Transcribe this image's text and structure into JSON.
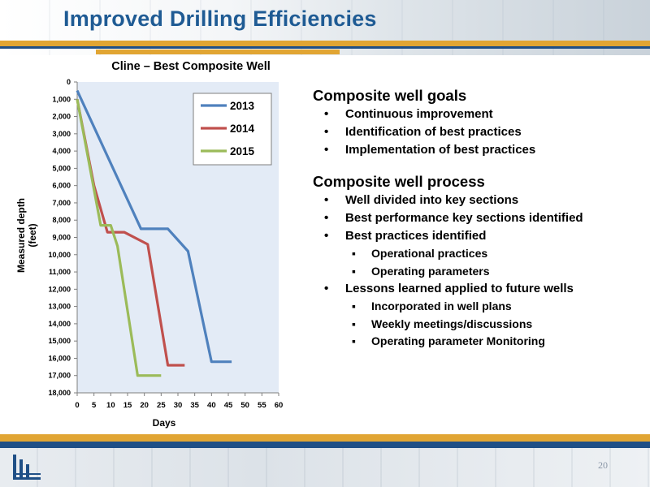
{
  "slide": {
    "title": "Improved Drilling Efficiencies",
    "page_number": "20"
  },
  "chart_data": {
    "type": "line",
    "title": "Cline – Best Composite Well",
    "xlabel": "Days",
    "ylabel": "Measured depth (feet)",
    "xlim": [
      0,
      60
    ],
    "ylim": [
      0,
      18000
    ],
    "y_reversed": true,
    "x_ticks": [
      "0",
      "5",
      "10",
      "15",
      "20",
      "25",
      "30",
      "35",
      "40",
      "45",
      "50",
      "55",
      "60"
    ],
    "y_ticks": [
      "0",
      "1,000",
      "2,000",
      "3,000",
      "4,000",
      "5,000",
      "6,000",
      "7,000",
      "8,000",
      "9,000",
      "10,000",
      "11,000",
      "12,000",
      "13,000",
      "14,000",
      "15,000",
      "16,000",
      "17,000",
      "18,000"
    ],
    "grid": false,
    "legend_position": "top-right",
    "series": [
      {
        "name": "2013",
        "color": "#4f81bd",
        "points": [
          [
            0,
            500
          ],
          [
            19,
            8500
          ],
          [
            27,
            8500
          ],
          [
            33,
            9800
          ],
          [
            40,
            16200
          ],
          [
            46,
            16200
          ]
        ]
      },
      {
        "name": "2014",
        "color": "#c0504d",
        "points": [
          [
            0,
            1000
          ],
          [
            5,
            6000
          ],
          [
            9,
            8700
          ],
          [
            14,
            8700
          ],
          [
            21,
            9400
          ],
          [
            27,
            16400
          ],
          [
            32,
            16400
          ]
        ]
      },
      {
        "name": "2015",
        "color": "#9bbb59",
        "points": [
          [
            0,
            1000
          ],
          [
            7,
            8300
          ],
          [
            10,
            8300
          ],
          [
            12,
            9500
          ],
          [
            18,
            17000
          ],
          [
            25,
            17000
          ]
        ]
      }
    ]
  },
  "goals": {
    "heading": "Composite well goals",
    "items": [
      "Continuous improvement",
      "Identification of best practices",
      "Implementation of best practices"
    ]
  },
  "process": {
    "heading": "Composite well process",
    "items": [
      {
        "text": "Well divided into key sections"
      },
      {
        "text": "Best performance key sections identified"
      },
      {
        "text": "Best practices identified",
        "sub": [
          "Operational practices",
          "Operating parameters"
        ]
      },
      {
        "text": "Lessons learned applied to future wells",
        "sub": [
          "Incorporated in well plans",
          "Weekly meetings/discussions",
          "Operating parameter Monitoring"
        ]
      }
    ]
  }
}
